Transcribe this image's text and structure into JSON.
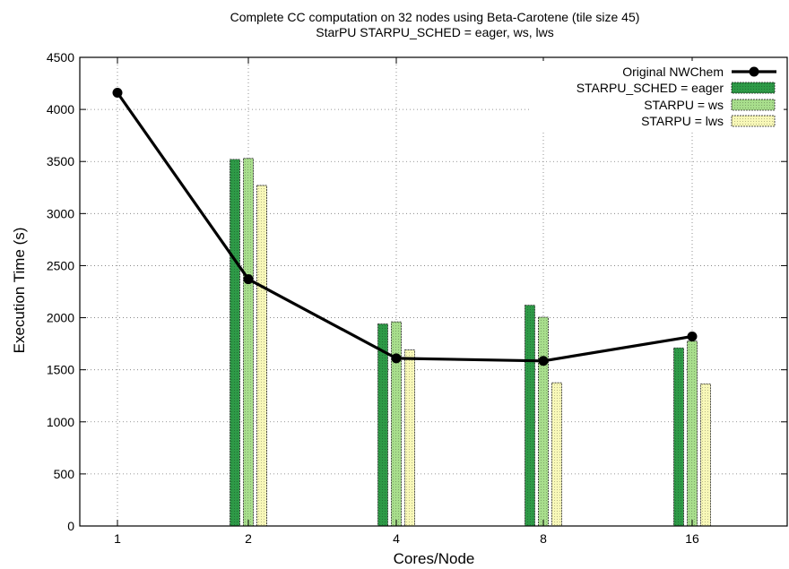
{
  "chart_data": {
    "type": "bar",
    "title": "Complete CC computation on 32 nodes using Beta-Carotene (tile size 45)",
    "subtitle": "StarPU STARPU_SCHED = eager, ws, lws",
    "xlabel": "Cores/Node",
    "ylabel": "Execution Time (s)",
    "categories": [
      "1",
      "2",
      "4",
      "8",
      "16"
    ],
    "ylim": [
      0,
      4500
    ],
    "yticks": [
      0,
      500,
      1000,
      1500,
      2000,
      2500,
      3000,
      3500,
      4000,
      4500
    ],
    "grid": true,
    "legend_position": "top-right",
    "line_series": {
      "name": "Original NWChem",
      "type": "line",
      "color": "#000000",
      "values": [
        4160,
        2370,
        1610,
        1585,
        1820
      ]
    },
    "series": [
      {
        "name": "STARPU_SCHED = eager",
        "color": "#2e9a47",
        "values": [
          null,
          3520,
          1940,
          2120,
          1710
        ]
      },
      {
        "name": "STARPU = ws",
        "color": "#a8de8c",
        "values": [
          null,
          3530,
          1960,
          2005,
          1775
        ]
      },
      {
        "name": "STARPU = lws",
        "color": "#f8f8b8",
        "values": [
          null,
          3270,
          1690,
          1375,
          1365
        ]
      }
    ]
  }
}
